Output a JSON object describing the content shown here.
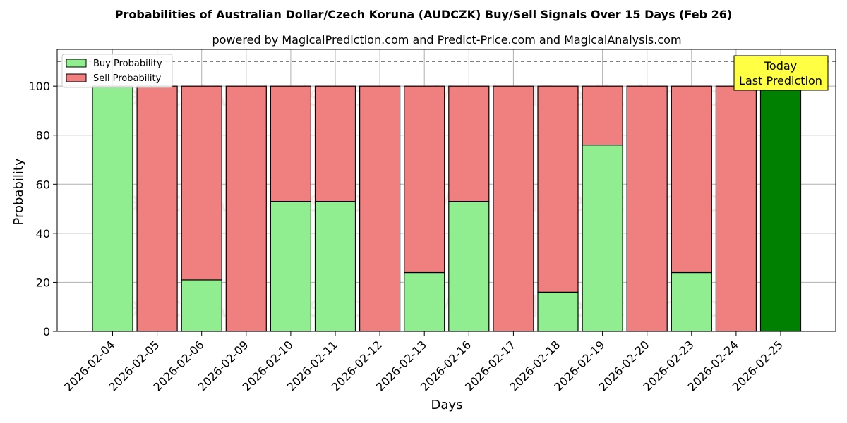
{
  "chart_data": {
    "type": "bar",
    "title": "Probabilities of Australian Dollar/Czech Koruna (AUDCZK) Buy/Sell Signals Over 15 Days (Feb 26)",
    "subtitle": "powered by MagicalPrediction.com and Predict-Price.com and MagicalAnalysis.com",
    "xlabel": "Days",
    "ylabel": "Probability",
    "ylim": [
      0,
      115
    ],
    "yticks": [
      0,
      20,
      40,
      60,
      80,
      100
    ],
    "grid": true,
    "legend_position": "top-left",
    "reference_line": 110,
    "categories": [
      "2026-02-04",
      "2026-02-05",
      "2026-02-06",
      "2026-02-09",
      "2026-02-10",
      "2026-02-11",
      "2026-02-12",
      "2026-02-13",
      "2026-02-16",
      "2026-02-17",
      "2026-02-18",
      "2026-02-19",
      "2026-02-20",
      "2026-02-23",
      "2026-02-24",
      "2026-02-25"
    ],
    "series": [
      {
        "name": "Buy Probability",
        "color": "#90ee90",
        "values": [
          100,
          0,
          21,
          0,
          53,
          53,
          0,
          24,
          53,
          0,
          16,
          76,
          0,
          24,
          0,
          100
        ]
      },
      {
        "name": "Sell Probability",
        "color": "#f08080",
        "values": [
          0,
          100,
          79,
          100,
          47,
          47,
          100,
          76,
          47,
          100,
          84,
          24,
          100,
          76,
          100,
          0
        ]
      }
    ],
    "highlight": {
      "index": 15,
      "color": "#008000"
    },
    "annotation": {
      "lines": [
        "Today",
        "Last Prediction"
      ],
      "background": "#ffff44"
    },
    "watermarks": [
      "MagicalAnalysis.com",
      "MagicalPrediction.com"
    ]
  }
}
